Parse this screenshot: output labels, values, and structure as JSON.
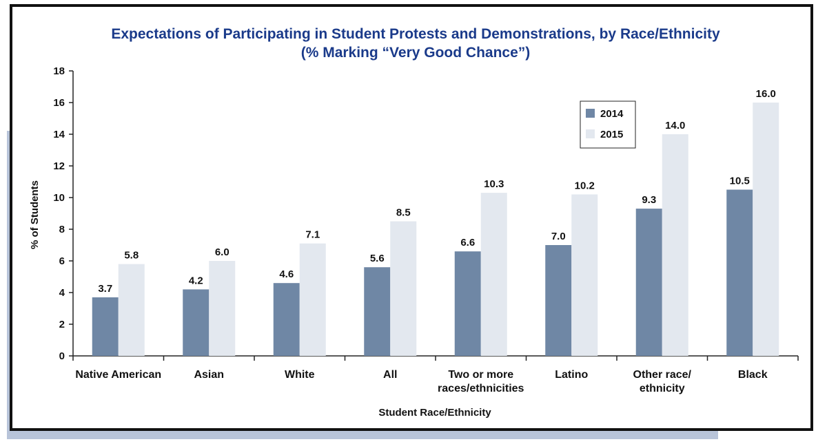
{
  "chart_data": {
    "type": "bar",
    "title": "Expectations of Participating in Student Protests and Demonstrations, by Race/Ethnicity",
    "subtitle": "(% Marking “Very Good Chance”)",
    "xlabel": "Student Race/Ethnicity",
    "ylabel": "% of Students",
    "ylim": [
      0,
      18
    ],
    "yticks": [
      0,
      2,
      4,
      6,
      8,
      10,
      12,
      14,
      16,
      18
    ],
    "categories": [
      [
        "Native American"
      ],
      [
        "Asian"
      ],
      [
        "White"
      ],
      [
        "All"
      ],
      [
        "Two or more",
        "races/ethnicities"
      ],
      [
        "Latino"
      ],
      [
        "Other race/",
        "ethnicity"
      ],
      [
        "Black"
      ]
    ],
    "series": [
      {
        "name": "2014",
        "color": "#6f87a5",
        "values": [
          3.7,
          4.2,
          4.6,
          5.6,
          6.6,
          7.0,
          9.3,
          10.5
        ],
        "labels": [
          "3.7",
          "4.2",
          "4.6",
          "5.6",
          "6.6",
          "7.0",
          "9.3",
          "10.5"
        ]
      },
      {
        "name": "2015",
        "color": "#e3e8ef",
        "values": [
          5.8,
          6.0,
          7.1,
          8.5,
          10.3,
          10.2,
          14.0,
          16.0
        ],
        "labels": [
          "5.8",
          "6.0",
          "7.1",
          "8.5",
          "10.3",
          "10.2",
          "14.0",
          "16.0"
        ]
      }
    ],
    "legend_position": "upper-right",
    "grid": false
  }
}
